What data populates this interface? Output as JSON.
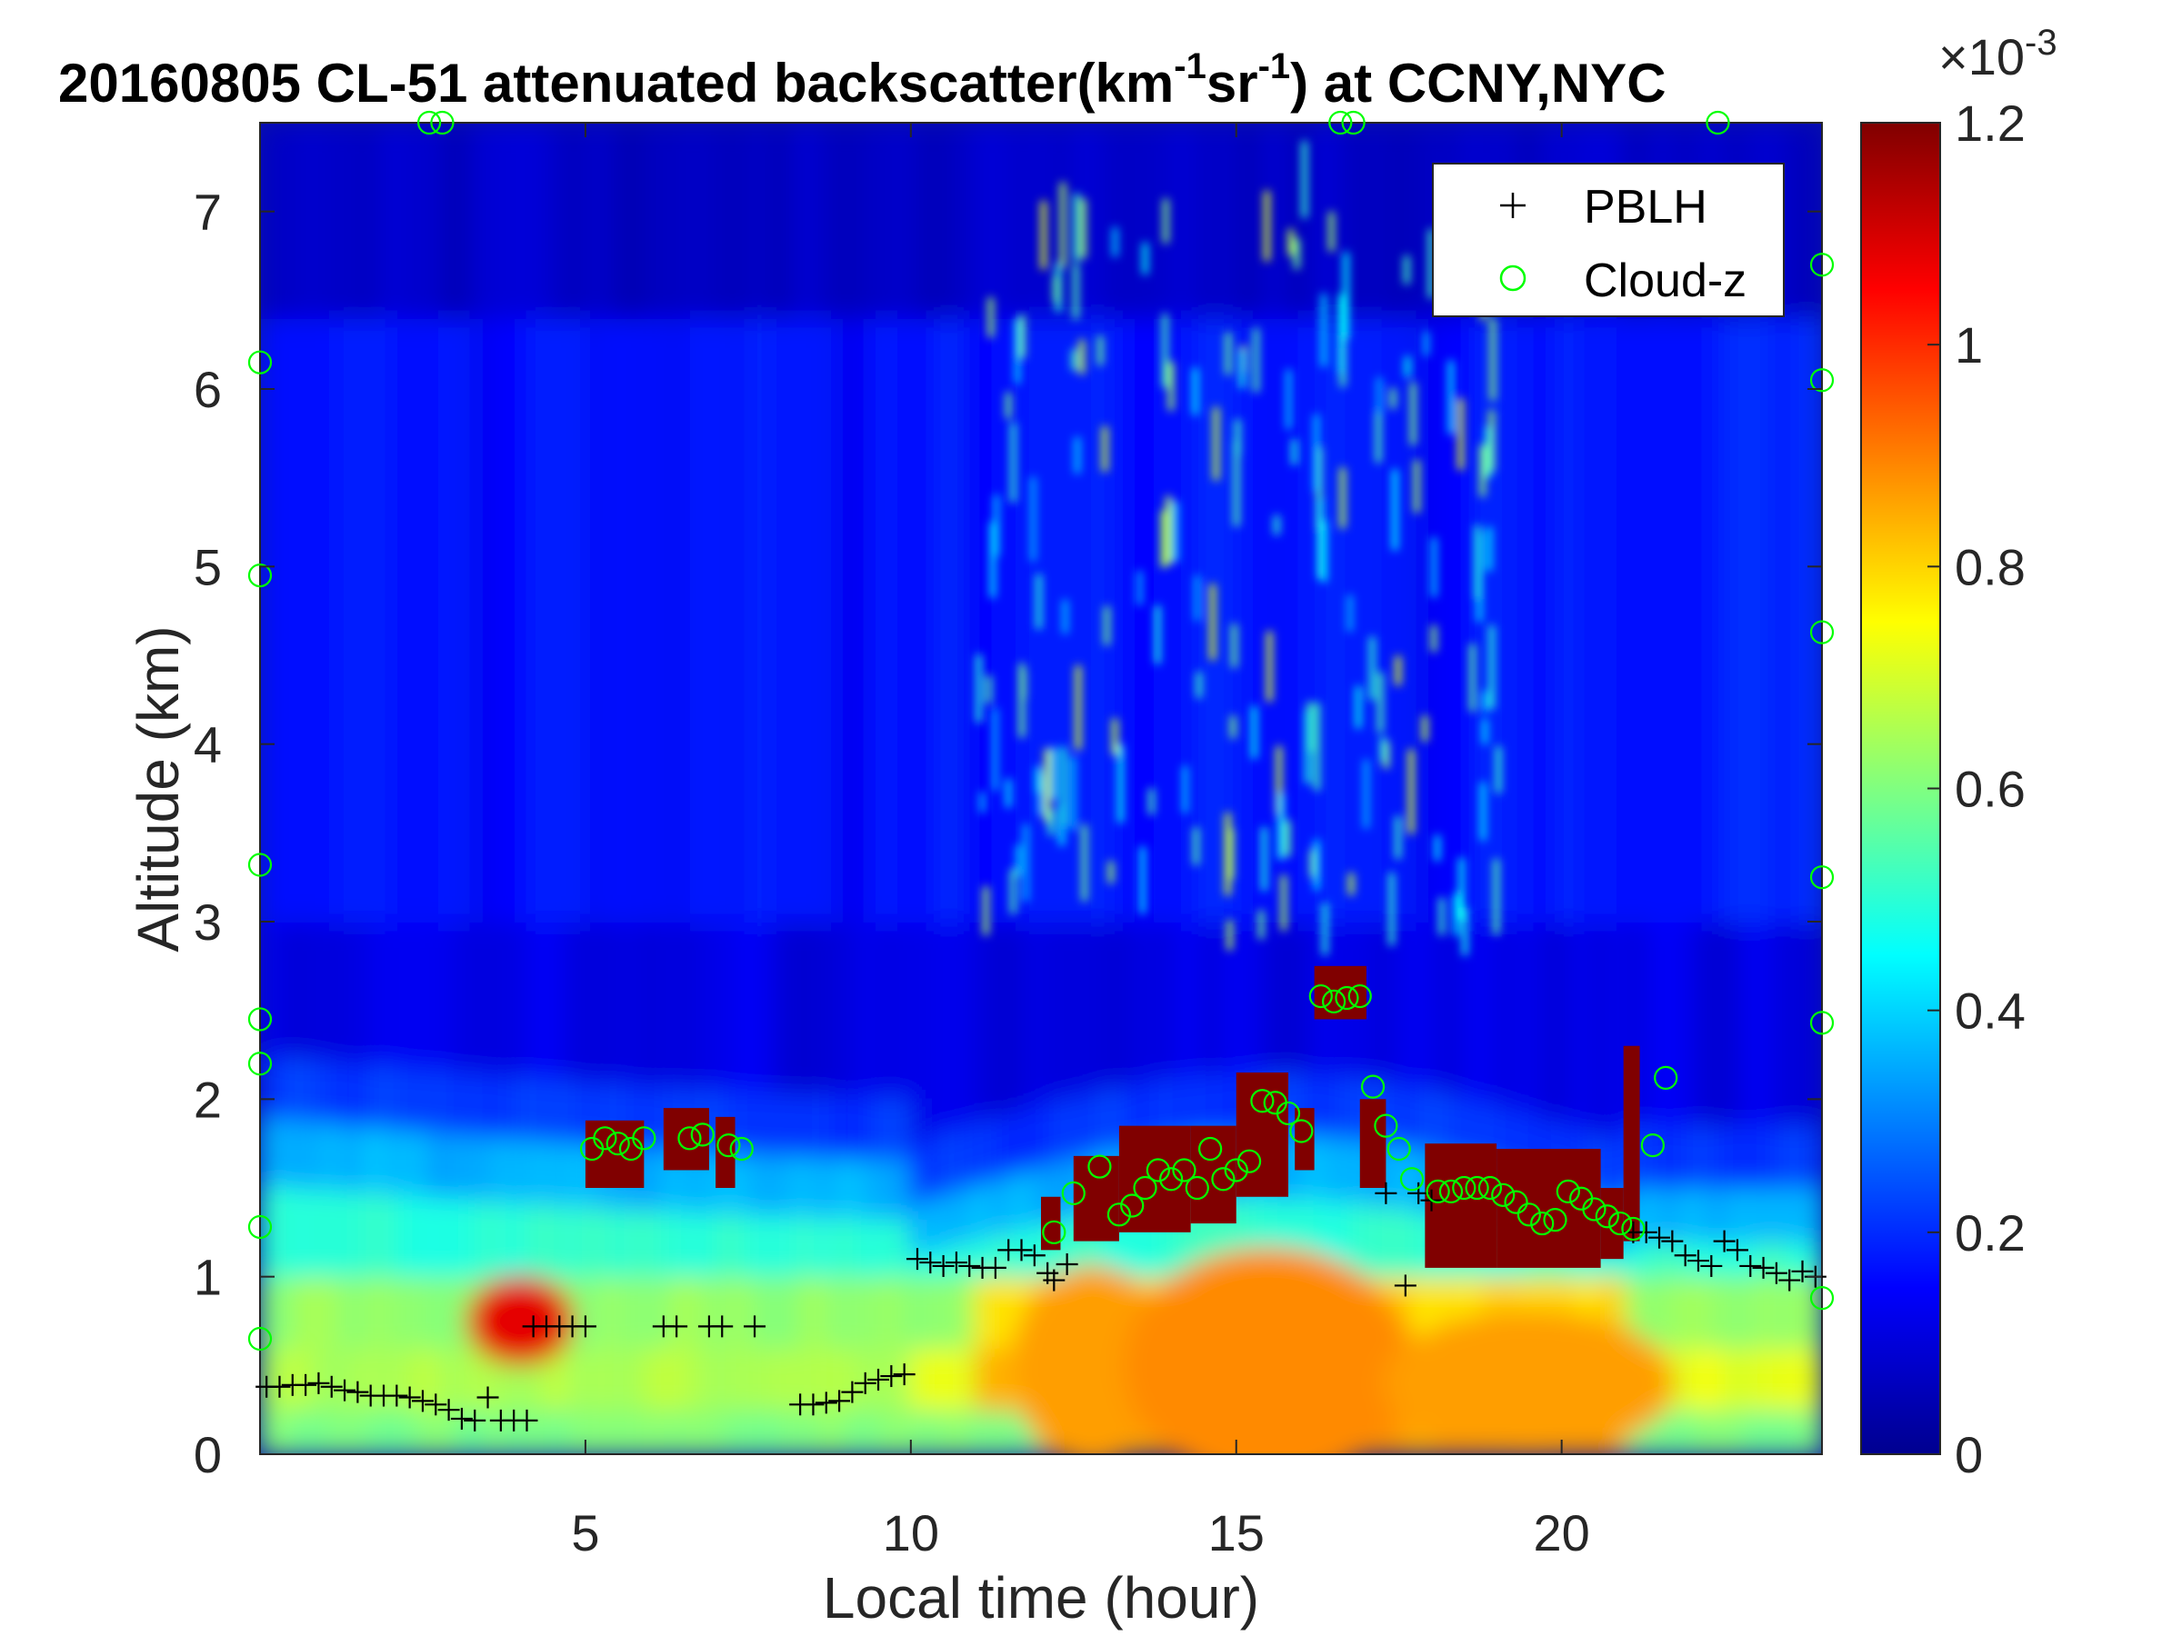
{
  "chart_data": {
    "type": "heatmap",
    "title_prefix": "20160805  CL-51 attenuated backscatter(km",
    "title_sup1": "-1",
    "title_mid": "sr",
    "title_sup2": "-1",
    "title_suffix": ") at CCNY,NYC",
    "xlabel": "Local time (hour)",
    "ylabel": "Altitude (km)",
    "xlim": [
      0,
      24
    ],
    "ylim": [
      0,
      7.5
    ],
    "xticks": [
      5,
      10,
      15,
      20
    ],
    "yticks": [
      0,
      1,
      2,
      3,
      4,
      5,
      6,
      7
    ],
    "colorbar": {
      "colormap": "jet",
      "range": [
        0,
        0.0012
      ],
      "tick_values": [
        0,
        0.2,
        0.4,
        0.6,
        0.8,
        1,
        1.2
      ],
      "tick_labels": [
        "0",
        "0.2",
        "0.4",
        "0.6",
        "0.8",
        "1",
        "1.2"
      ],
      "exponent_base": "×10",
      "exponent_power": "-3"
    },
    "legend": {
      "position": "top-right",
      "entries": [
        "PBLH",
        "Cloud-z"
      ]
    },
    "series": [
      {
        "name": "PBLH",
        "marker": "+",
        "color": "#000000",
        "points": [
          [
            0.1,
            0.38
          ],
          [
            0.3,
            0.38
          ],
          [
            0.5,
            0.39
          ],
          [
            0.7,
            0.39
          ],
          [
            0.9,
            0.4
          ],
          [
            1.1,
            0.38
          ],
          [
            1.3,
            0.36
          ],
          [
            1.5,
            0.35
          ],
          [
            1.7,
            0.33
          ],
          [
            1.9,
            0.33
          ],
          [
            2.1,
            0.33
          ],
          [
            2.3,
            0.32
          ],
          [
            2.5,
            0.3
          ],
          [
            2.7,
            0.28
          ],
          [
            2.9,
            0.25
          ],
          [
            3.1,
            0.2
          ],
          [
            3.3,
            0.19
          ],
          [
            3.5,
            0.32
          ],
          [
            3.7,
            0.19
          ],
          [
            3.9,
            0.19
          ],
          [
            4.1,
            0.19
          ],
          [
            4.2,
            0.72
          ],
          [
            4.4,
            0.72
          ],
          [
            4.6,
            0.72
          ],
          [
            4.8,
            0.72
          ],
          [
            5.0,
            0.72
          ],
          [
            6.2,
            0.72
          ],
          [
            6.4,
            0.72
          ],
          [
            6.9,
            0.72
          ],
          [
            7.1,
            0.72
          ],
          [
            7.6,
            0.72
          ],
          [
            8.3,
            0.28
          ],
          [
            8.5,
            0.28
          ],
          [
            8.7,
            0.29
          ],
          [
            8.9,
            0.3
          ],
          [
            9.1,
            0.35
          ],
          [
            9.3,
            0.4
          ],
          [
            9.5,
            0.42
          ],
          [
            9.7,
            0.44
          ],
          [
            9.9,
            0.45
          ],
          [
            10.1,
            1.1
          ],
          [
            10.3,
            1.08
          ],
          [
            10.5,
            1.06
          ],
          [
            10.7,
            1.08
          ],
          [
            10.9,
            1.06
          ],
          [
            11.1,
            1.05
          ],
          [
            11.3,
            1.05
          ],
          [
            11.5,
            1.15
          ],
          [
            11.7,
            1.15
          ],
          [
            11.9,
            1.12
          ],
          [
            12.1,
            1.02
          ],
          [
            12.2,
            0.98
          ],
          [
            12.4,
            1.07
          ],
          [
            17.3,
            1.47
          ],
          [
            17.6,
            0.95
          ],
          [
            17.8,
            1.47
          ],
          [
            18.0,
            1.43
          ],
          [
            21.1,
            1.25
          ],
          [
            21.3,
            1.25
          ],
          [
            21.5,
            1.22
          ],
          [
            21.7,
            1.2
          ],
          [
            21.9,
            1.12
          ],
          [
            22.1,
            1.09
          ],
          [
            22.3,
            1.06
          ],
          [
            22.5,
            1.2
          ],
          [
            22.7,
            1.15
          ],
          [
            22.9,
            1.06
          ],
          [
            23.1,
            1.05
          ],
          [
            23.3,
            1.02
          ],
          [
            23.5,
            0.98
          ],
          [
            23.7,
            1.03
          ],
          [
            23.9,
            1.0
          ]
        ]
      },
      {
        "name": "Cloud-z",
        "marker": "o",
        "color": "#00ff00",
        "points": [
          [
            5.1,
            1.72
          ],
          [
            5.3,
            1.78
          ],
          [
            5.5,
            1.75
          ],
          [
            5.7,
            1.72
          ],
          [
            5.9,
            1.78
          ],
          [
            7.2,
            1.74
          ],
          [
            7.4,
            1.72
          ],
          [
            6.6,
            1.78
          ],
          [
            6.8,
            1.8
          ],
          [
            12.2,
            1.25
          ],
          [
            12.5,
            1.47
          ],
          [
            12.9,
            1.62
          ],
          [
            13.2,
            1.35
          ],
          [
            13.4,
            1.4
          ],
          [
            13.6,
            1.5
          ],
          [
            13.8,
            1.6
          ],
          [
            14.0,
            1.55
          ],
          [
            14.2,
            1.6
          ],
          [
            14.4,
            1.5
          ],
          [
            14.6,
            1.72
          ],
          [
            14.8,
            1.55
          ],
          [
            15.0,
            1.6
          ],
          [
            15.2,
            1.65
          ],
          [
            15.4,
            1.99
          ],
          [
            15.6,
            1.98
          ],
          [
            15.8,
            1.92
          ],
          [
            16.0,
            1.82
          ],
          [
            16.3,
            2.58
          ],
          [
            16.5,
            2.55
          ],
          [
            16.7,
            2.57
          ],
          [
            16.9,
            2.58
          ],
          [
            17.1,
            2.07
          ],
          [
            17.3,
            1.85
          ],
          [
            17.5,
            1.72
          ],
          [
            17.7,
            1.55
          ],
          [
            18.1,
            1.48
          ],
          [
            18.3,
            1.48
          ],
          [
            18.5,
            1.5
          ],
          [
            18.7,
            1.5
          ],
          [
            18.9,
            1.5
          ],
          [
            19.1,
            1.46
          ],
          [
            19.3,
            1.42
          ],
          [
            19.5,
            1.35
          ],
          [
            19.7,
            1.3
          ],
          [
            19.9,
            1.32
          ],
          [
            20.1,
            1.48
          ],
          [
            20.3,
            1.44
          ],
          [
            20.5,
            1.38
          ],
          [
            20.7,
            1.34
          ],
          [
            20.9,
            1.3
          ],
          [
            21.1,
            1.27
          ],
          [
            21.4,
            1.74
          ],
          [
            21.6,
            2.12
          ],
          [
            0.0,
            6.15
          ],
          [
            0.0,
            4.95
          ],
          [
            0.0,
            3.32
          ],
          [
            0.0,
            2.45
          ],
          [
            0.0,
            2.2
          ],
          [
            0.0,
            1.28
          ],
          [
            0.0,
            0.65
          ],
          [
            2.6,
            7.5
          ],
          [
            2.8,
            7.5
          ],
          [
            16.6,
            7.5
          ],
          [
            16.8,
            7.5
          ],
          [
            22.4,
            7.5
          ],
          [
            24.0,
            6.7
          ],
          [
            24.0,
            6.05
          ],
          [
            24.0,
            4.63
          ],
          [
            24.0,
            3.25
          ],
          [
            24.0,
            2.43
          ],
          [
            24.0,
            0.88
          ]
        ]
      }
    ]
  }
}
